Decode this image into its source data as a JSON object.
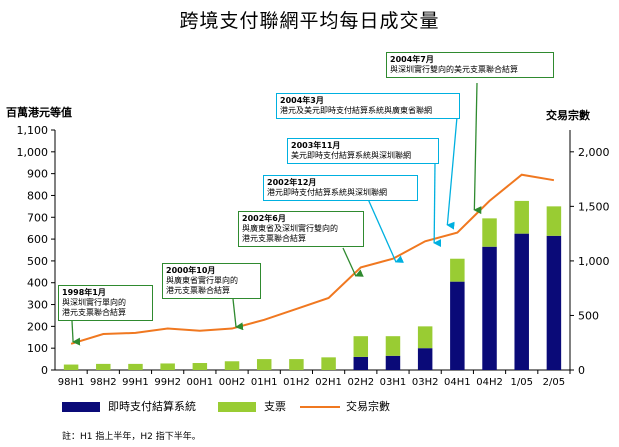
{
  "title": "跨境支付聯網平均每日成交量",
  "left_axis_unit": "百萬港元等值",
  "right_axis_unit": "交易宗數",
  "note": "註：H1 指上半年，H2 指下半年。",
  "colors": {
    "instant_payment": "#0a0a78",
    "cheque": "#99cc33",
    "transactions_line": "#f07820",
    "annotation_green": "#2f8a2f",
    "annotation_cyan": "#00b0e0",
    "annotation_blue": "#3366cc"
  },
  "chart_data": {
    "type": "bar",
    "categories": [
      "98H1",
      "98H2",
      "99H1",
      "99H2",
      "00H1",
      "00H2",
      "01H1",
      "01H2",
      "02H1",
      "02H2",
      "03H1",
      "03H2",
      "04H1",
      "04H2",
      "1/05",
      "2/05"
    ],
    "series": [
      {
        "name": "即時支付結算系統",
        "axis": "left",
        "kind": "stacked-bar",
        "values": [
          0,
          0,
          0,
          0,
          0,
          0,
          0,
          0,
          0,
          60,
          65,
          100,
          405,
          565,
          625,
          615
        ]
      },
      {
        "name": "支票",
        "axis": "left",
        "kind": "stacked-bar",
        "values": [
          25,
          28,
          28,
          30,
          32,
          40,
          50,
          50,
          58,
          95,
          90,
          100,
          105,
          130,
          150,
          135
        ]
      },
      {
        "name": "交易宗數",
        "axis": "right",
        "kind": "line",
        "values": [
          240,
          330,
          340,
          380,
          360,
          380,
          460,
          560,
          660,
          940,
          1020,
          1180,
          1260,
          1550,
          1790,
          1740
        ]
      }
    ],
    "y_left": {
      "ylim": [
        0,
        1100
      ],
      "ticks": [
        0,
        100,
        200,
        300,
        400,
        500,
        600,
        700,
        800,
        900,
        1000,
        1100
      ],
      "tick_labels": [
        "0",
        "100",
        "200",
        "300",
        "400",
        "500",
        "600",
        "700",
        "800",
        "900",
        "1,000",
        "1,100"
      ]
    },
    "y_right": {
      "ylim": [
        0,
        2200
      ],
      "ticks": [
        0,
        500,
        1000,
        1500,
        2000
      ],
      "tick_labels": [
        "0",
        "500",
        "1,000",
        "1,500",
        "2,000"
      ]
    },
    "annotations": [
      {
        "date": "1998年1月",
        "text": "與深圳實行單向的\n港元支票聯合結算",
        "category": "98H1",
        "color": "green"
      },
      {
        "date": "2000年10月",
        "text": "與廣東省實行單向的\n港元支票聯合結算",
        "category": "00H2",
        "color": "green"
      },
      {
        "date": "2002年6月",
        "text": "與廣東省及深圳實行雙向的\n港元支票聯合結算",
        "category": "02H2",
        "color": "green"
      },
      {
        "date": "2002年12月",
        "text": "港元即時支付結算系統與深圳聯網",
        "category": "03H1",
        "color": "cyan"
      },
      {
        "date": "2003年11月",
        "text": "美元即時支付結算系統與深圳聯網",
        "category": "04H1",
        "color": "cyan"
      },
      {
        "date": "2004年3月",
        "text": "港元及美元即時支付結算系統與廣東省聯網",
        "category": "04H2",
        "color": "cyan"
      },
      {
        "date": "2004年7月",
        "text": "與深圳實行雙向的美元支票聯合結算",
        "category": "04H2",
        "color": "green"
      }
    ],
    "legend": [
      "即時支付結算系統",
      "支票",
      "交易宗數"
    ],
    "legend_position": "bottom",
    "grid": false
  }
}
